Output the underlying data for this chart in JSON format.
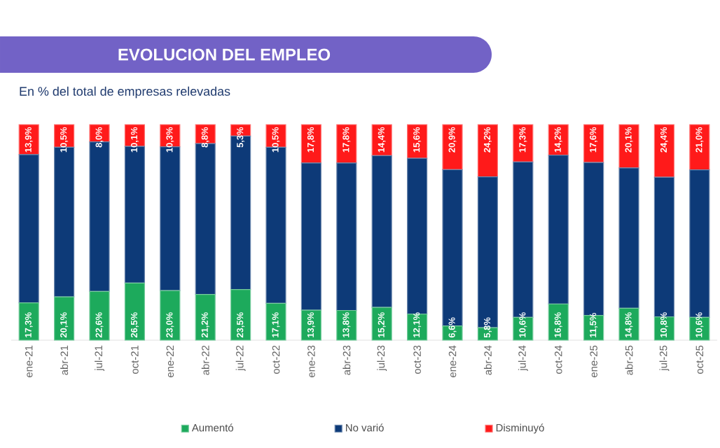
{
  "chart_data": {
    "type": "bar",
    "stacked": true,
    "title": "EVOLUCION DEL EMPLEO",
    "subtitle": "En % del total de empresas relevadas",
    "categories": [
      "ene-21",
      "abr-21",
      "jul-21",
      "oct-21",
      "ene-22",
      "abr-22",
      "jul-22",
      "oct-22",
      "ene-23",
      "abr-23",
      "jul-23",
      "oct-23",
      "ene-24",
      "abr-24",
      "jul-24",
      "oct-24",
      "ene-25",
      "abr-25",
      "jul-25",
      "oct-25"
    ],
    "series": [
      {
        "name": "Aumentó",
        "color": "#1daa5c",
        "values": [
          17.3,
          20.1,
          22.6,
          26.5,
          23.0,
          21.2,
          23.5,
          17.1,
          13.9,
          13.8,
          15.2,
          12.1,
          6.6,
          5.8,
          10.6,
          16.8,
          11.5,
          14.8,
          10.8,
          10.6
        ],
        "value_labels": [
          "17,3%",
          "20,1%",
          "22,6%",
          "26,5%",
          "23,0%",
          "21,2%",
          "23,5%",
          "17,1%",
          "13,9%",
          "13,8%",
          "15,2%",
          "12,1%",
          "6,6%",
          "5,8%",
          "10,6%",
          "16,8%",
          "11,5%",
          "14,8%",
          "10,8%",
          "10,6%"
        ]
      },
      {
        "name": "No varió",
        "color": "#0d3a78",
        "values": [
          68.8,
          69.4,
          69.4,
          63.4,
          66.7,
          70.0,
          71.2,
          72.4,
          68.3,
          68.4,
          70.4,
          72.3,
          72.5,
          70.0,
          72.1,
          69.0,
          70.9,
          65.1,
          64.8,
          68.4
        ]
      },
      {
        "name": "Disminuyó",
        "color": "#ff1a1a",
        "values": [
          13.9,
          10.5,
          8.0,
          10.1,
          10.3,
          8.8,
          5.3,
          10.5,
          17.8,
          17.8,
          14.4,
          15.6,
          20.9,
          24.2,
          17.3,
          14.2,
          17.6,
          20.1,
          24.4,
          21.0
        ],
        "value_labels": [
          "13,9%",
          "10,5%",
          "8,0%",
          "10,1%",
          "10,3%",
          "8,8%",
          "5,3%",
          "10,5%",
          "17,8%",
          "17,8%",
          "14,4%",
          "15,6%",
          "20,9%",
          "24,2%",
          "17,3%",
          "14,2%",
          "17,6%",
          "20,1%",
          "24,4%",
          "21,0%"
        ]
      }
    ],
    "ylim": [
      0,
      100
    ],
    "tick_labels": "x",
    "legend": "bottom"
  }
}
